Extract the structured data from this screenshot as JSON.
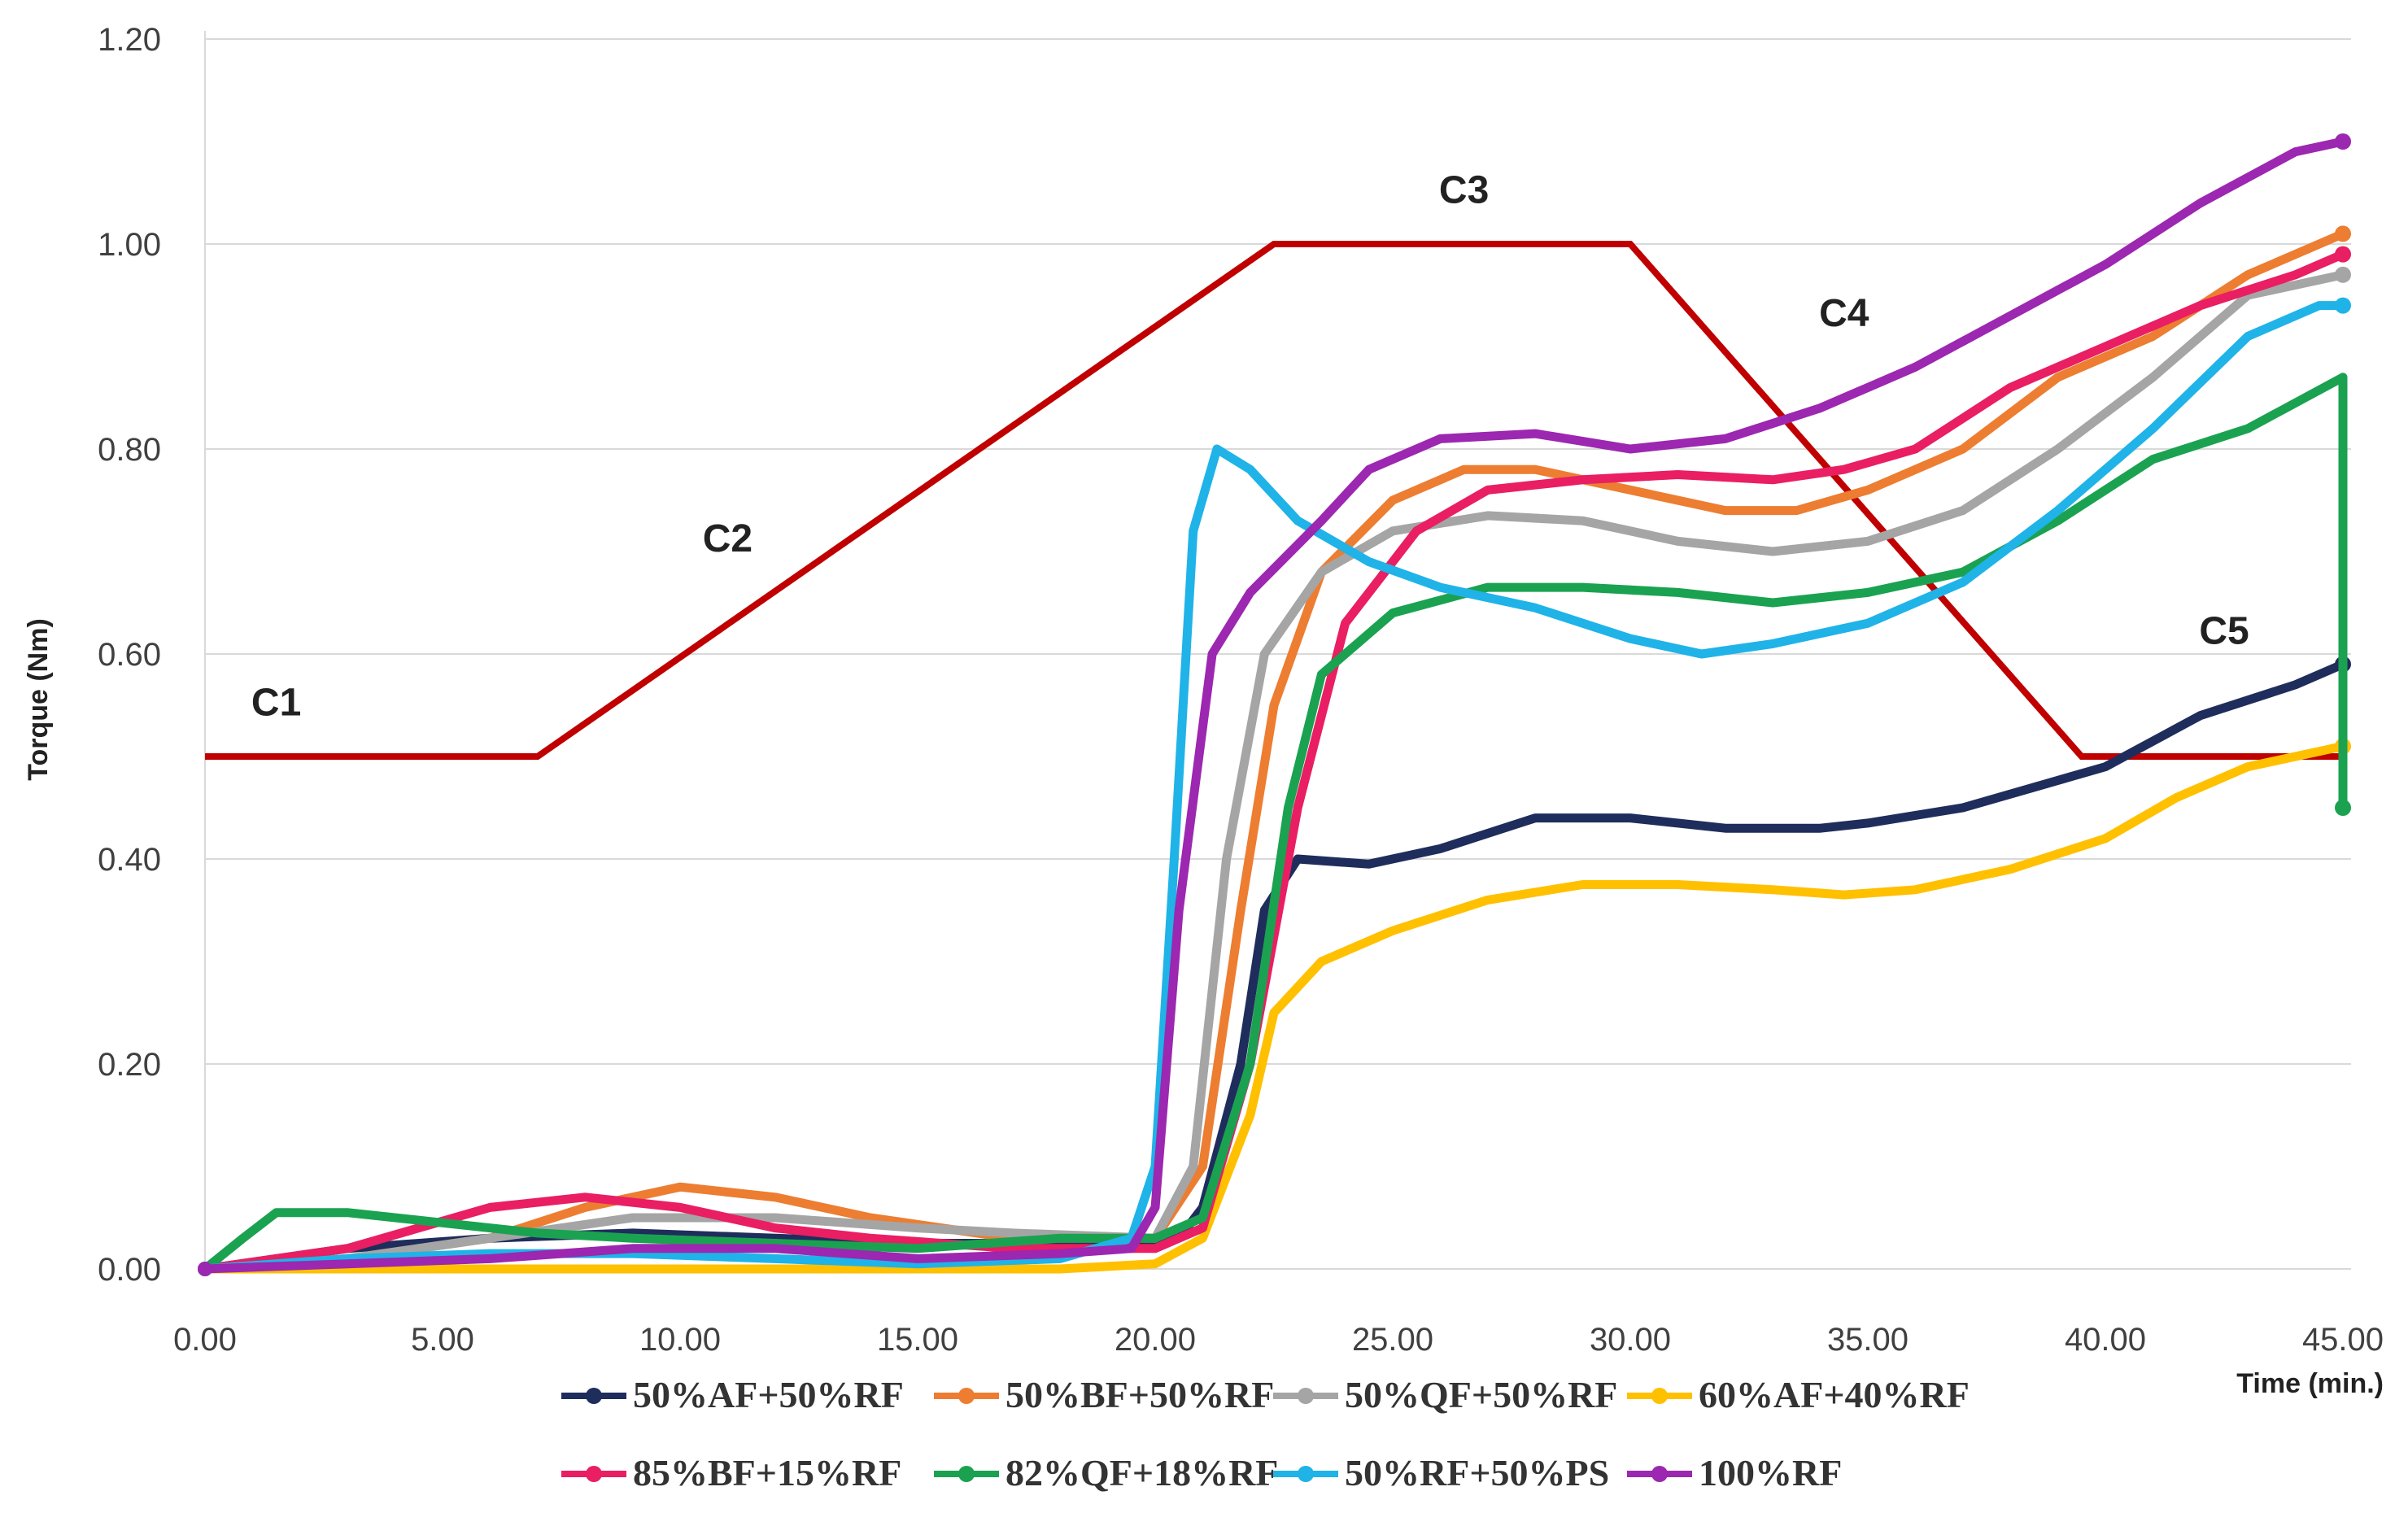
{
  "chart_data": {
    "type": "line",
    "title": "",
    "xlabel": "Time (min.)",
    "ylabel": "Torque (Nm)",
    "xlim": [
      0,
      45
    ],
    "ylim": [
      -0.01,
      1.2
    ],
    "x_ticks": [
      "0.00",
      "5.00",
      "10.00",
      "15.00",
      "20.00",
      "25.00",
      "30.00",
      "35.00",
      "40.00",
      "45.00"
    ],
    "y_ticks": [
      "0.00",
      "0.20",
      "0.40",
      "0.60",
      "0.80",
      "1.00",
      "1.20"
    ],
    "grid": true,
    "legend_position": "bottom",
    "reference_line": {
      "name": "temperature-profile",
      "color": "#c00000",
      "points": [
        [
          0,
          0.5
        ],
        [
          7,
          0.5
        ],
        [
          22.5,
          1.0
        ],
        [
          30,
          1.0
        ],
        [
          39.5,
          0.5
        ],
        [
          45,
          0.5
        ]
      ]
    },
    "phases": [
      {
        "label": "C1",
        "x": 1.5,
        "y": 0.54
      },
      {
        "label": "C2",
        "x": 11.0,
        "y": 0.7
      },
      {
        "label": "C3",
        "x": 26.5,
        "y": 1.04
      },
      {
        "label": "C4",
        "x": 34.5,
        "y": 0.92
      },
      {
        "label": "C5",
        "x": 42.5,
        "y": 0.61
      }
    ],
    "series": [
      {
        "name": "50%AF+50%RF",
        "color": "#1f2d5c",
        "points": [
          [
            0,
            0
          ],
          [
            3,
            0.02
          ],
          [
            6,
            0.03
          ],
          [
            9,
            0.035
          ],
          [
            12,
            0.03
          ],
          [
            15,
            0.025
          ],
          [
            19,
            0.025
          ],
          [
            20.5,
            0.03
          ],
          [
            21,
            0.06
          ],
          [
            21.8,
            0.2
          ],
          [
            22.3,
            0.35
          ],
          [
            23,
            0.4
          ],
          [
            24.5,
            0.395
          ],
          [
            26,
            0.41
          ],
          [
            28,
            0.44
          ],
          [
            30,
            0.44
          ],
          [
            32,
            0.43
          ],
          [
            34,
            0.43
          ],
          [
            35,
            0.435
          ],
          [
            37,
            0.45
          ],
          [
            38.5,
            0.47
          ],
          [
            40,
            0.49
          ],
          [
            42,
            0.54
          ],
          [
            44,
            0.57
          ],
          [
            45,
            0.59
          ]
        ]
      },
      {
        "name": "50%BF+50%RF",
        "color": "#ed7d31",
        "points": [
          [
            0,
            0
          ],
          [
            3,
            0.01
          ],
          [
            6,
            0.03
          ],
          [
            8,
            0.06
          ],
          [
            10,
            0.08
          ],
          [
            12,
            0.07
          ],
          [
            14,
            0.05
          ],
          [
            17,
            0.03
          ],
          [
            20,
            0.03
          ],
          [
            21,
            0.1
          ],
          [
            21.8,
            0.35
          ],
          [
            22.5,
            0.55
          ],
          [
            23.5,
            0.68
          ],
          [
            25,
            0.75
          ],
          [
            26.5,
            0.78
          ],
          [
            28,
            0.78
          ],
          [
            30,
            0.76
          ],
          [
            32,
            0.74
          ],
          [
            33.5,
            0.74
          ],
          [
            35,
            0.76
          ],
          [
            37,
            0.8
          ],
          [
            39,
            0.87
          ],
          [
            41,
            0.91
          ],
          [
            43,
            0.97
          ],
          [
            45,
            1.01
          ]
        ]
      },
      {
        "name": "50%QF+50%RF",
        "color": "#a5a5a5",
        "points": [
          [
            0,
            0
          ],
          [
            3,
            0.01
          ],
          [
            6,
            0.03
          ],
          [
            9,
            0.05
          ],
          [
            12,
            0.05
          ],
          [
            15,
            0.04
          ],
          [
            17,
            0.035
          ],
          [
            20,
            0.03
          ],
          [
            20.8,
            0.1
          ],
          [
            21.5,
            0.4
          ],
          [
            22.3,
            0.6
          ],
          [
            23.5,
            0.68
          ],
          [
            25,
            0.72
          ],
          [
            27,
            0.735
          ],
          [
            29,
            0.73
          ],
          [
            31,
            0.71
          ],
          [
            33,
            0.7
          ],
          [
            35,
            0.71
          ],
          [
            37,
            0.74
          ],
          [
            39,
            0.8
          ],
          [
            41,
            0.87
          ],
          [
            43,
            0.95
          ],
          [
            45,
            0.97
          ]
        ]
      },
      {
        "name": "60%AF+40%RF",
        "color": "#ffc000",
        "points": [
          [
            0,
            0
          ],
          [
            3,
            0
          ],
          [
            6,
            0
          ],
          [
            9,
            0
          ],
          [
            12,
            0
          ],
          [
            15,
            0
          ],
          [
            18,
            0
          ],
          [
            20,
            0.005
          ],
          [
            21,
            0.03
          ],
          [
            22,
            0.15
          ],
          [
            22.5,
            0.25
          ],
          [
            23.5,
            0.3
          ],
          [
            25,
            0.33
          ],
          [
            27,
            0.36
          ],
          [
            29,
            0.375
          ],
          [
            31,
            0.375
          ],
          [
            33,
            0.37
          ],
          [
            34.5,
            0.365
          ],
          [
            36,
            0.37
          ],
          [
            38,
            0.39
          ],
          [
            40,
            0.42
          ],
          [
            41.5,
            0.46
          ],
          [
            43,
            0.49
          ],
          [
            45,
            0.51
          ]
        ]
      },
      {
        "name": "85%BF+15%RF",
        "color": "#e91e63",
        "points": [
          [
            0,
            0
          ],
          [
            3,
            0.02
          ],
          [
            6,
            0.06
          ],
          [
            8,
            0.07
          ],
          [
            10,
            0.06
          ],
          [
            12,
            0.04
          ],
          [
            14,
            0.03
          ],
          [
            17,
            0.02
          ],
          [
            20,
            0.02
          ],
          [
            21,
            0.04
          ],
          [
            22,
            0.2
          ],
          [
            23,
            0.45
          ],
          [
            24,
            0.63
          ],
          [
            25.5,
            0.72
          ],
          [
            27,
            0.76
          ],
          [
            29,
            0.77
          ],
          [
            31,
            0.775
          ],
          [
            33,
            0.77
          ],
          [
            34.5,
            0.78
          ],
          [
            36,
            0.8
          ],
          [
            38,
            0.86
          ],
          [
            40,
            0.9
          ],
          [
            42,
            0.94
          ],
          [
            44,
            0.97
          ],
          [
            45,
            0.99
          ]
        ]
      },
      {
        "name": "82%QF+18%RF",
        "color": "#1aa251",
        "points": [
          [
            0,
            0
          ],
          [
            0.8,
            0.03
          ],
          [
            1.5,
            0.055
          ],
          [
            3,
            0.055
          ],
          [
            5,
            0.045
          ],
          [
            7,
            0.035
          ],
          [
            9,
            0.03
          ],
          [
            12,
            0.025
          ],
          [
            15,
            0.02
          ],
          [
            18,
            0.03
          ],
          [
            20,
            0.03
          ],
          [
            21,
            0.05
          ],
          [
            22,
            0.2
          ],
          [
            22.8,
            0.45
          ],
          [
            23.5,
            0.58
          ],
          [
            25,
            0.64
          ],
          [
            27,
            0.665
          ],
          [
            29,
            0.665
          ],
          [
            31,
            0.66
          ],
          [
            33,
            0.65
          ],
          [
            35,
            0.66
          ],
          [
            37,
            0.68
          ],
          [
            39,
            0.73
          ],
          [
            41,
            0.79
          ],
          [
            43,
            0.82
          ],
          [
            45,
            0.87
          ],
          [
            45,
            0.45
          ]
        ]
      },
      {
        "name": "50%RF+50%PS",
        "color": "#1fb3e8",
        "points": [
          [
            0,
            0
          ],
          [
            3,
            0.01
          ],
          [
            6,
            0.015
          ],
          [
            9,
            0.015
          ],
          [
            12,
            0.01
          ],
          [
            15,
            0.005
          ],
          [
            18,
            0.01
          ],
          [
            19.5,
            0.03
          ],
          [
            20,
            0.1
          ],
          [
            20.4,
            0.4
          ],
          [
            20.8,
            0.72
          ],
          [
            21.3,
            0.8
          ],
          [
            22,
            0.78
          ],
          [
            23,
            0.73
          ],
          [
            24.5,
            0.69
          ],
          [
            26,
            0.665
          ],
          [
            28,
            0.645
          ],
          [
            30,
            0.615
          ],
          [
            31.5,
            0.6
          ],
          [
            33,
            0.61
          ],
          [
            35,
            0.63
          ],
          [
            37,
            0.67
          ],
          [
            39,
            0.74
          ],
          [
            41,
            0.82
          ],
          [
            43,
            0.91
          ],
          [
            44.5,
            0.94
          ],
          [
            45,
            0.94
          ]
        ]
      },
      {
        "name": "100%RF",
        "color": "#9c27b0",
        "points": [
          [
            0,
            0
          ],
          [
            3,
            0.005
          ],
          [
            6,
            0.01
          ],
          [
            9,
            0.02
          ],
          [
            12,
            0.02
          ],
          [
            15,
            0.01
          ],
          [
            18,
            0.015
          ],
          [
            19.5,
            0.02
          ],
          [
            20,
            0.06
          ],
          [
            20.5,
            0.35
          ],
          [
            21.2,
            0.6
          ],
          [
            22,
            0.66
          ],
          [
            23.5,
            0.73
          ],
          [
            24.5,
            0.78
          ],
          [
            26,
            0.81
          ],
          [
            28,
            0.815
          ],
          [
            30,
            0.8
          ],
          [
            32,
            0.81
          ],
          [
            34,
            0.84
          ],
          [
            36,
            0.88
          ],
          [
            38,
            0.93
          ],
          [
            40,
            0.98
          ],
          [
            42,
            1.04
          ],
          [
            44,
            1.09
          ],
          [
            45,
            1.1
          ]
        ]
      }
    ]
  }
}
